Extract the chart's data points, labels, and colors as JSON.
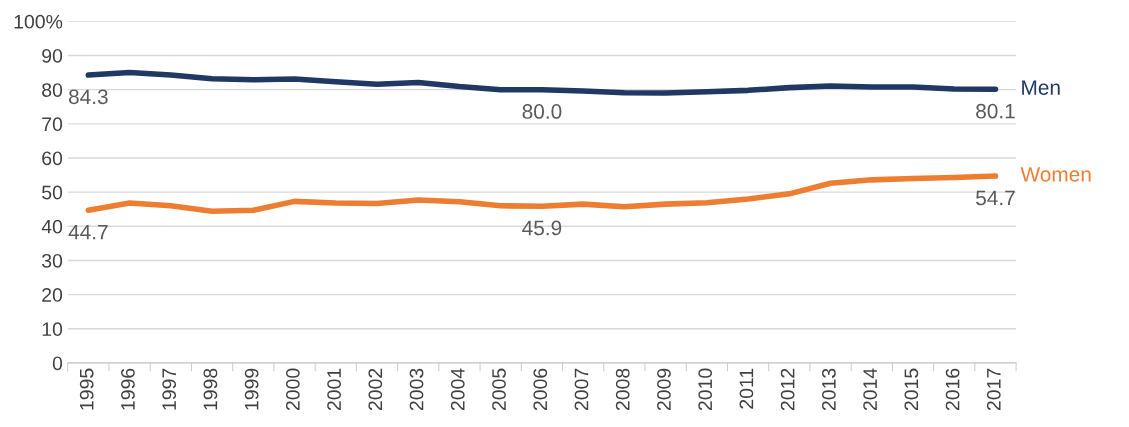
{
  "chart_data": {
    "type": "line",
    "categories": [
      "1995",
      "1996",
      "1997",
      "1998",
      "1999",
      "2000",
      "2001",
      "2002",
      "2003",
      "2004",
      "2005",
      "2006",
      "2007",
      "2008",
      "2009",
      "2010",
      "2011",
      "2012",
      "2013",
      "2014",
      "2015",
      "2016",
      "2017"
    ],
    "series": [
      {
        "name": "Men",
        "color": "#1f3864",
        "values": [
          84.3,
          85.0,
          84.3,
          83.2,
          82.9,
          83.1,
          82.3,
          81.6,
          82.1,
          80.9,
          80.0,
          80.0,
          79.6,
          79.1,
          79.0,
          79.4,
          79.8,
          80.6,
          81.1,
          80.8,
          80.8,
          80.2,
          80.1
        ],
        "value_labels": [
          "84.3",
          null,
          null,
          null,
          null,
          null,
          null,
          null,
          null,
          null,
          null,
          "80.0",
          null,
          null,
          null,
          null,
          null,
          null,
          null,
          null,
          null,
          null,
          "80.1"
        ]
      },
      {
        "name": "Women",
        "color": "#ed7d31",
        "values": [
          44.7,
          46.8,
          46.0,
          44.4,
          44.7,
          47.3,
          46.8,
          46.7,
          47.7,
          47.2,
          46.0,
          45.9,
          46.5,
          45.7,
          46.5,
          46.9,
          48.0,
          49.5,
          52.6,
          53.6,
          54.0,
          54.3,
          54.7
        ],
        "value_labels": [
          "44.7",
          null,
          null,
          null,
          null,
          null,
          null,
          null,
          null,
          null,
          null,
          "45.9",
          null,
          null,
          null,
          null,
          null,
          null,
          null,
          null,
          null,
          null,
          "54.7"
        ]
      }
    ],
    "ylim": [
      0,
      100
    ],
    "yticks": [
      0,
      10,
      20,
      30,
      40,
      50,
      60,
      70,
      80,
      90,
      {
        "value": 100,
        "label": "100%"
      }
    ],
    "grid": "y",
    "legend": false,
    "marker": "none",
    "line_style": "solid"
  }
}
